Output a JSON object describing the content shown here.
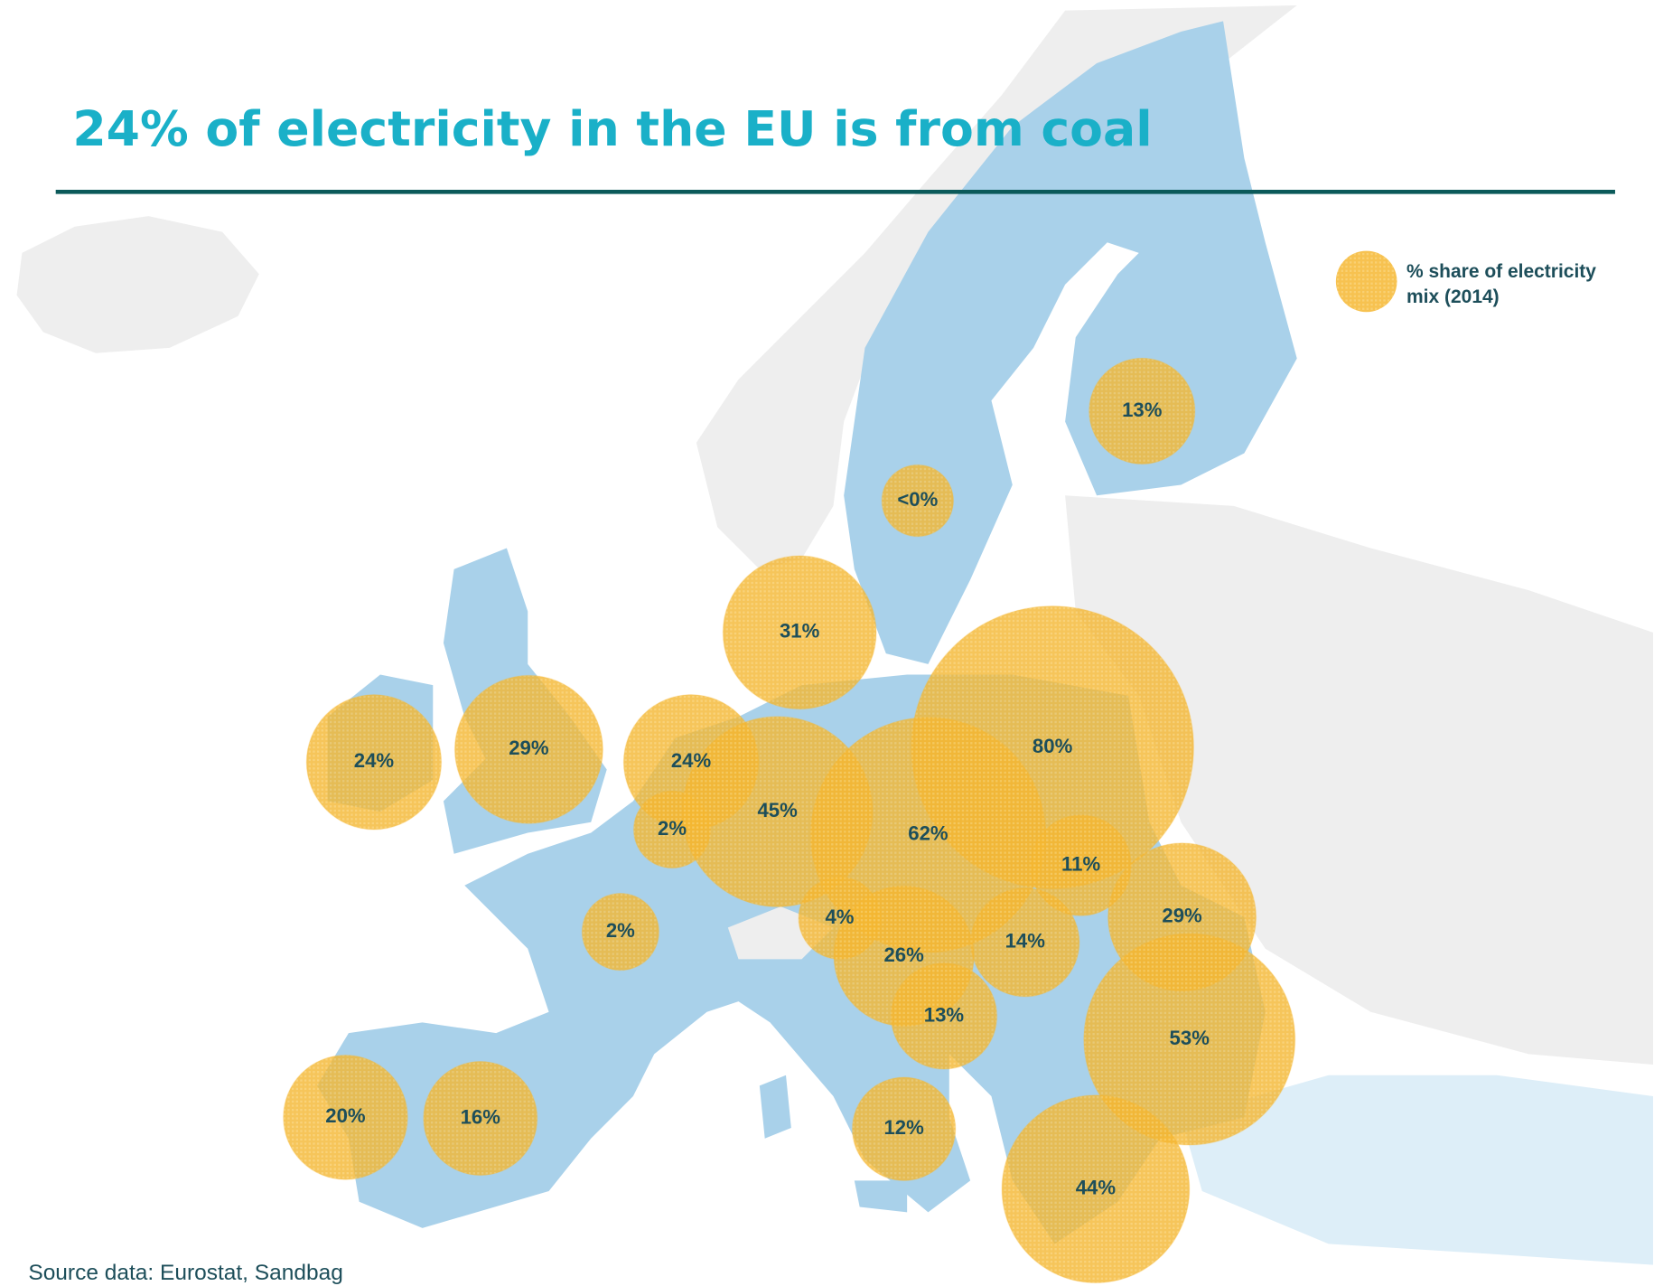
{
  "title": "24% of electricity in the EU is from coal",
  "legend": {
    "line1": "% share of electricity",
    "line2": "mix (2014)"
  },
  "source": "Source data: Eurostat, Sandbag",
  "bubbles": {
    "color": "#f5b731",
    "values": [
      13,
      0,
      31,
      24,
      29,
      24,
      2,
      45,
      80,
      62,
      11,
      2,
      4,
      26,
      14,
      29,
      13,
      53,
      20,
      16,
      12,
      44
    ],
    "value_labels": [
      "13%",
      "<0%",
      "31%",
      "24%",
      "29%",
      "24%",
      "2%",
      "45%",
      "80%",
      "62%",
      "11%",
      "2%",
      "4%",
      "26%",
      "14%",
      "29%",
      "13%",
      "53%",
      "20%",
      "16%",
      "12%",
      "44%"
    ]
  }
}
